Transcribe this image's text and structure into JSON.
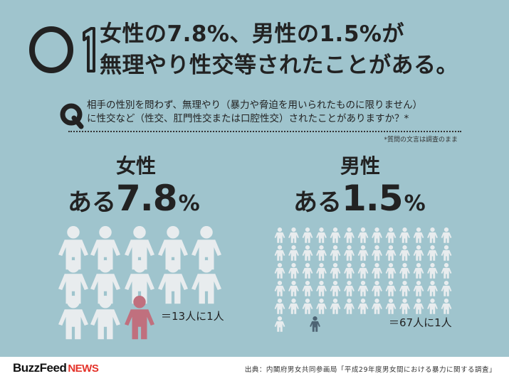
{
  "header": {
    "number_mark": "Q1",
    "headline_line1": "女性の7.8%、男性の1.5%が",
    "headline_line2": "無理やり性交等されたことがある。"
  },
  "question": {
    "mark": "Q",
    "line1": "相手の性別を問わず、無理やり（暴力や脅迫を用いられたものに限りません）",
    "line2": "に性交など（性交、肛門性交または口腔性交）されたことがありますか？*",
    "note": "*質問の文言は調査のまま"
  },
  "female": {
    "label": "女性",
    "prefix": "ある",
    "value": "7.8",
    "unit": "%",
    "ratio_text": "＝13人に1人",
    "total_icons": 13,
    "highlight_count": 1,
    "highlight_color": "#c0707e",
    "icon_color": "#e8ecee"
  },
  "male": {
    "label": "男性",
    "prefix": "ある",
    "value": "1.5",
    "unit": "%",
    "ratio_text": "＝67人に1人",
    "total_icons": 67,
    "highlight_count": 1,
    "highlight_color": "#4e6474",
    "icon_color": "#e8ecee"
  },
  "footer": {
    "logo_main": "BuzzFeed",
    "logo_sub": "NEWS",
    "source": "出典：内閣府男女共同参画局「平成29年度男女間における暴力に関する調査」"
  },
  "colors": {
    "background": "#9fc4cd",
    "logo_accent": "#e4332a"
  }
}
